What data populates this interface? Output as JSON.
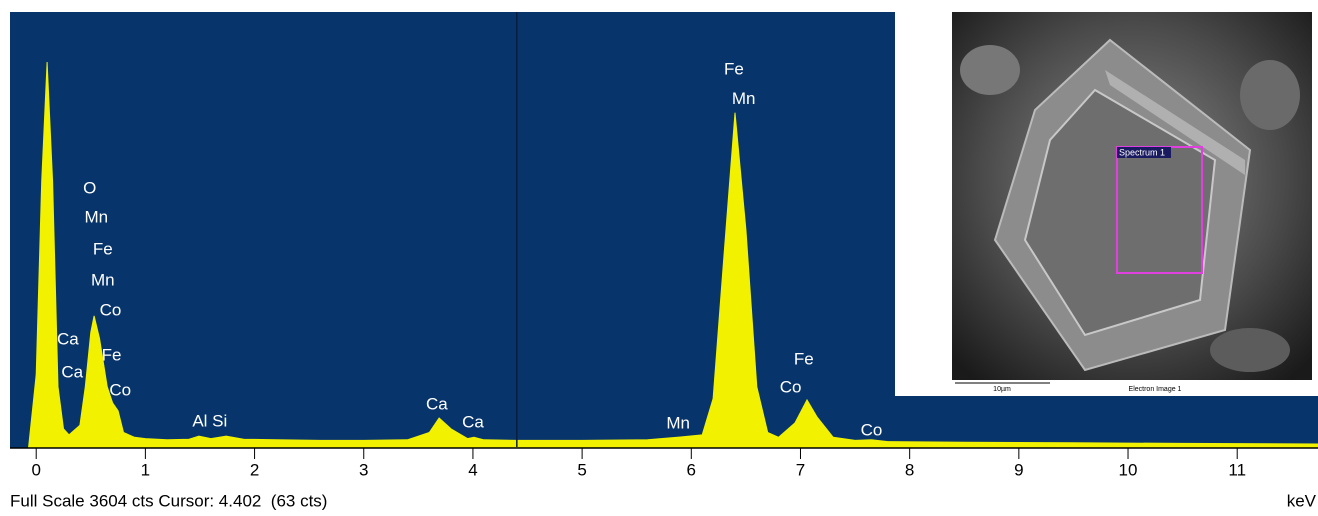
{
  "chart_data": {
    "type": "area",
    "x": [
      -0.07,
      0,
      0.05,
      0.1,
      0.15,
      0.2,
      0.25,
      0.3,
      0.4,
      0.45,
      0.5,
      0.53,
      0.58,
      0.65,
      0.7,
      0.75,
      0.8,
      0.9,
      1.0,
      1.2,
      1.4,
      1.49,
      1.6,
      1.74,
      1.9,
      2.2,
      2.6,
      3.0,
      3.4,
      3.6,
      3.69,
      3.8,
      3.95,
      4.01,
      4.1,
      4.4,
      5.0,
      5.6,
      5.9,
      6.1,
      6.2,
      6.3,
      6.4,
      6.5,
      6.6,
      6.7,
      6.8,
      6.95,
      7.06,
      7.15,
      7.3,
      7.5,
      7.65,
      7.8,
      8.5,
      9.5,
      10.5,
      11.74
    ],
    "values": [
      0,
      600,
      2200,
      3190,
      2200,
      500,
      150,
      100,
      180,
      500,
      950,
      1086,
      900,
      500,
      365,
      300,
      120,
      80,
      70,
      60,
      65,
      90,
      70,
      90,
      65,
      60,
      55,
      55,
      60,
      120,
      240,
      150,
      70,
      80,
      60,
      55,
      55,
      60,
      83,
      100,
      400,
      1600,
      2770,
      1800,
      500,
      120,
      80,
      200,
      390,
      250,
      80,
      55,
      60,
      45,
      40,
      35,
      30,
      25
    ],
    "color": "#f2f200",
    "background": "#07356b",
    "xlim": [
      -0.24,
      11.74
    ],
    "ylim": [
      0,
      3604
    ],
    "xticks": [
      0,
      1,
      2,
      3,
      4,
      5,
      6,
      7,
      8,
      9,
      10,
      11
    ],
    "x_label": "keV",
    "cursor_x": 4.402,
    "status": "Full Scale 3604 cts Cursor: 4.402  (63 cts)",
    "annotations": [
      {
        "text": "O",
        "x": 0.49,
        "y": 2139
      },
      {
        "text": "Mn",
        "x": 0.55,
        "y": 1898
      },
      {
        "text": "Fe",
        "x": 0.61,
        "y": 1633
      },
      {
        "text": "Mn",
        "x": 0.61,
        "y": 1376
      },
      {
        "text": "Co",
        "x": 0.68,
        "y": 1127
      },
      {
        "text": "Ca",
        "x": 0.29,
        "y": 887
      },
      {
        "text": "Ca",
        "x": 0.33,
        "y": 614
      },
      {
        "text": "Fe",
        "x": 0.69,
        "y": 754
      },
      {
        "text": "Co",
        "x": 0.77,
        "y": 464
      },
      {
        "text": "Al Si",
        "x": 1.59,
        "y": 207
      },
      {
        "text": "Ca",
        "x": 3.67,
        "y": 348
      },
      {
        "text": "Ca",
        "x": 4.0,
        "y": 199
      },
      {
        "text": "Mn",
        "x": 5.88,
        "y": 191
      },
      {
        "text": "Fe",
        "x": 6.39,
        "y": 3125
      },
      {
        "text": "Mn",
        "x": 6.48,
        "y": 2877
      },
      {
        "text": "Fe",
        "x": 7.03,
        "y": 721
      },
      {
        "text": "Co",
        "x": 6.91,
        "y": 489
      },
      {
        "text": "Co",
        "x": 7.65,
        "y": 133
      }
    ]
  },
  "inset": {
    "spectrum_label": "Spectrum 1",
    "scale_label": "10µm",
    "caption": "Electron Image 1"
  }
}
